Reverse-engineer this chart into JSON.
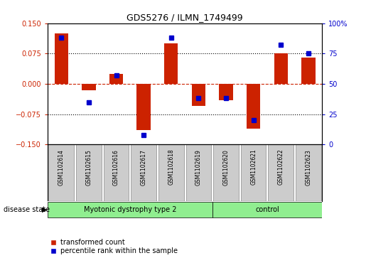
{
  "title": "GDS5276 / ILMN_1749499",
  "samples": [
    "GSM1102614",
    "GSM1102615",
    "GSM1102616",
    "GSM1102617",
    "GSM1102618",
    "GSM1102619",
    "GSM1102620",
    "GSM1102621",
    "GSM1102622",
    "GSM1102623"
  ],
  "transformed_count": [
    0.125,
    -0.015,
    0.025,
    -0.115,
    0.1,
    -0.055,
    -0.04,
    -0.11,
    0.075,
    0.065
  ],
  "percentile_rank": [
    88,
    35,
    57,
    8,
    88,
    38,
    38,
    20,
    82,
    75
  ],
  "n_disease": 6,
  "n_control": 4,
  "group_labels": [
    "Myotonic dystrophy type 2",
    "control"
  ],
  "group_color": "#90EE90",
  "ylim_left": [
    -0.15,
    0.15
  ],
  "ylim_right": [
    0,
    100
  ],
  "yticks_left": [
    -0.15,
    -0.075,
    0,
    0.075,
    0.15
  ],
  "yticks_right": [
    0,
    25,
    50,
    75,
    100
  ],
  "bar_color": "#CC2200",
  "dot_color": "#0000CC",
  "hline_color": "#CC2200",
  "dot_color_line": "dotted",
  "grid_color": "#000000",
  "sample_box_color": "#cccccc",
  "sample_box_edge": "#888888",
  "label_transformed": "transformed count",
  "label_percentile": "percentile rank within the sample",
  "disease_state_label": "disease state",
  "bar_width": 0.5,
  "dot_size": 5
}
